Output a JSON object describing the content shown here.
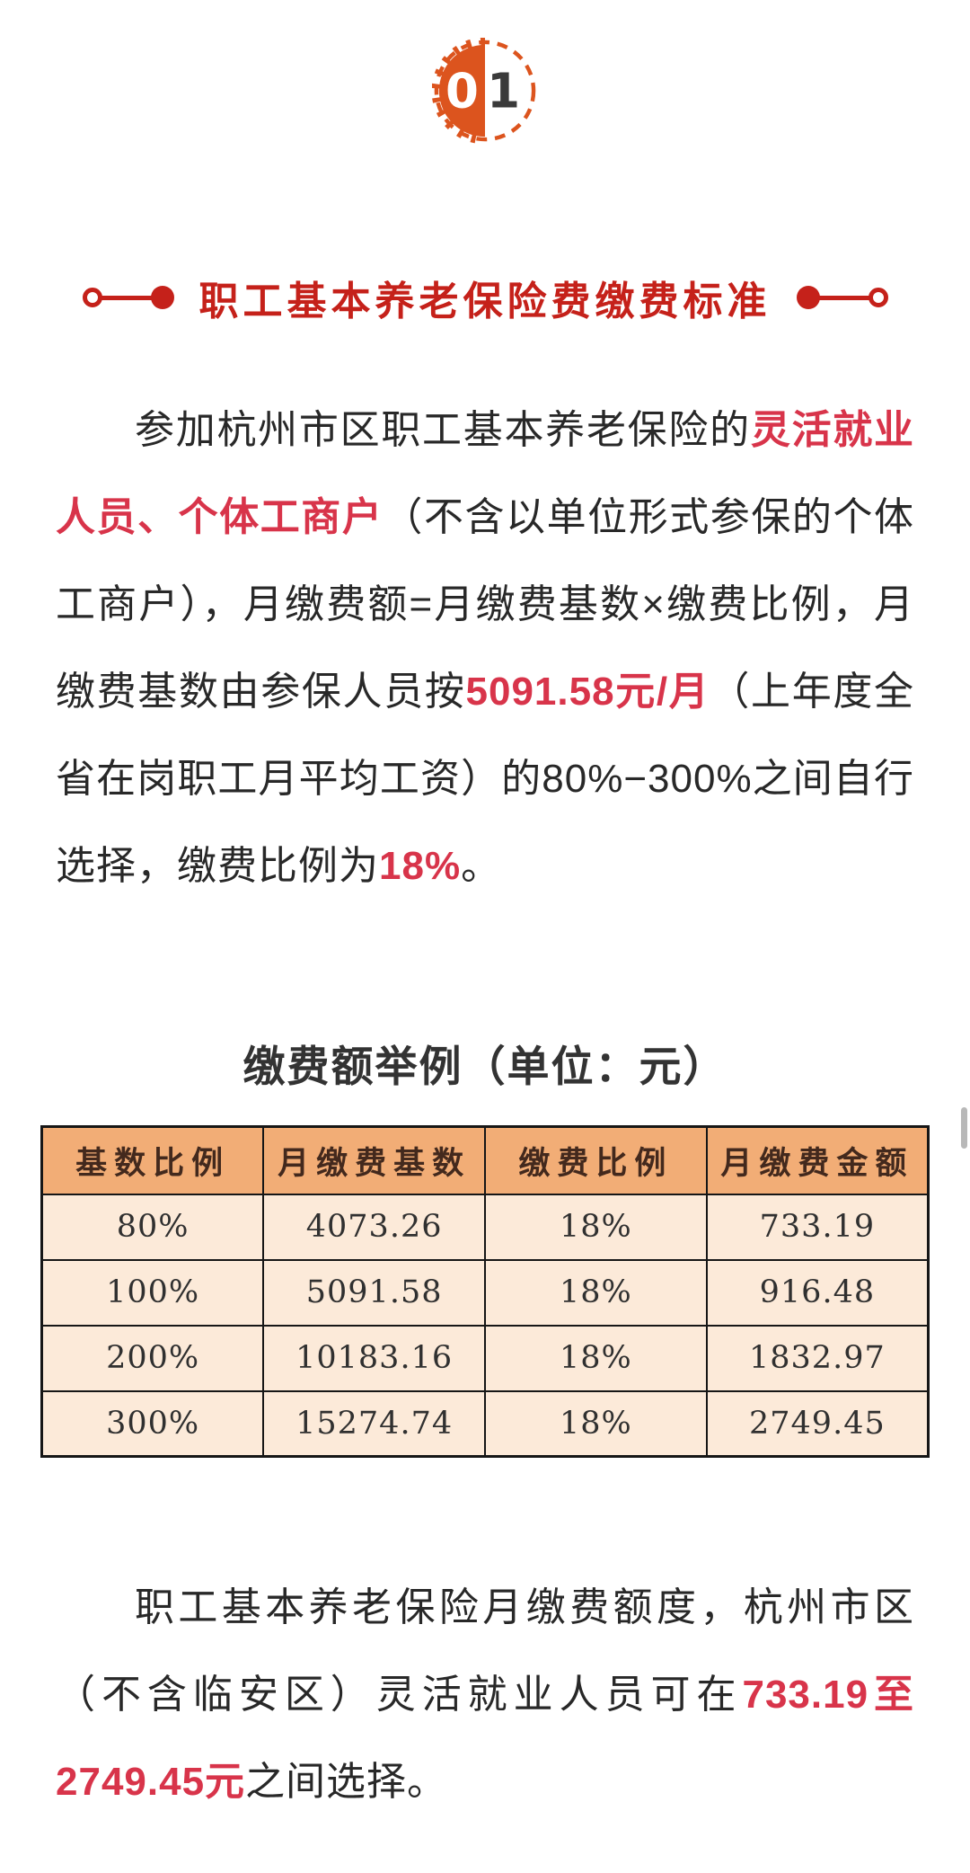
{
  "badge": {
    "digit_left": "0",
    "digit_right": "1"
  },
  "section_header": {
    "title": "职工基本养老保险费缴费标准"
  },
  "paragraph1": {
    "segments": [
      {
        "text": "参加杭州市区职工基本养老保险的",
        "highlight": false
      },
      {
        "text": "灵活就业人员、个体工商户",
        "highlight": true
      },
      {
        "text": "（不含以单位形式参保的个体工商户），月缴费额=月缴费基数×缴费比例，月缴费基数由参保人员按",
        "highlight": false
      },
      {
        "text": "5091.58元/月",
        "highlight": true
      },
      {
        "text": "（上年度全省在岗职工月平均工资）的80%−300%之间自行选择，缴费比例为",
        "highlight": false
      },
      {
        "text": "18%",
        "highlight": true
      },
      {
        "text": "。",
        "highlight": false
      }
    ]
  },
  "table_section": {
    "title": "缴费额举例（单位：元）",
    "headers": [
      "基数比例",
      "月缴费基数",
      "缴费比例",
      "月缴费金额"
    ],
    "rows": [
      [
        "80%",
        "4073.26",
        "18%",
        "733.19"
      ],
      [
        "100%",
        "5091.58",
        "18%",
        "916.48"
      ],
      [
        "200%",
        "10183.16",
        "18%",
        "1832.97"
      ],
      [
        "300%",
        "15274.74",
        "18%",
        "2749.45"
      ]
    ]
  },
  "paragraph2": {
    "segments": [
      {
        "text": "职工基本养老保险月缴费额度，杭州市区（不含临安区）灵活就业人员可在",
        "highlight": false
      },
      {
        "text": "733.19至2749.45元",
        "highlight": true
      },
      {
        "text": "之间选择。",
        "highlight": false
      }
    ]
  },
  "colors": {
    "accent_red": "#c5211a",
    "highlight_red": "#d8344a",
    "badge_orange": "#dc541e",
    "badge_digit_dark": "#3a3a3a",
    "table_header_bg": "#f2ad76",
    "table_row_bg": "#fcead9",
    "table_border": "#161616",
    "scrollbar_gray": "#b8b8b8"
  }
}
